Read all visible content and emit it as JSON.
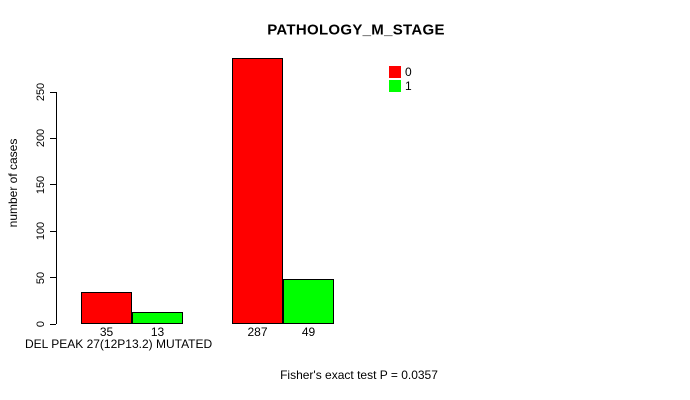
{
  "chart_data": {
    "type": "bar",
    "title": "PATHOLOGY_M_STAGE",
    "ylabel": "number of cases",
    "xlabel": "DEL PEAK 27(12P13.2) MUTATED",
    "series": [
      {
        "name": "0",
        "color": "#ff0000",
        "values": [
          35,
          287
        ]
      },
      {
        "name": "1",
        "color": "#00ff00",
        "values": [
          13,
          49
        ]
      }
    ],
    "bar_value_labels": [
      "35",
      "13",
      "287",
      "49"
    ],
    "yticks": [
      0,
      50,
      100,
      150,
      200,
      250
    ],
    "ylim": [
      0,
      250
    ],
    "grid": false,
    "legend_position": "top-right",
    "legend": {
      "entries": [
        {
          "label": "0",
          "color": "#ff0000"
        },
        {
          "label": "1",
          "color": "#00ff00"
        }
      ]
    },
    "annotation": "Fisher's exact test P = 0.0357"
  },
  "colors": {
    "bar_red": "#ff0000",
    "bar_green": "#00ff00",
    "axis": "#000000",
    "background": "#ffffff",
    "text": "#000000"
  }
}
